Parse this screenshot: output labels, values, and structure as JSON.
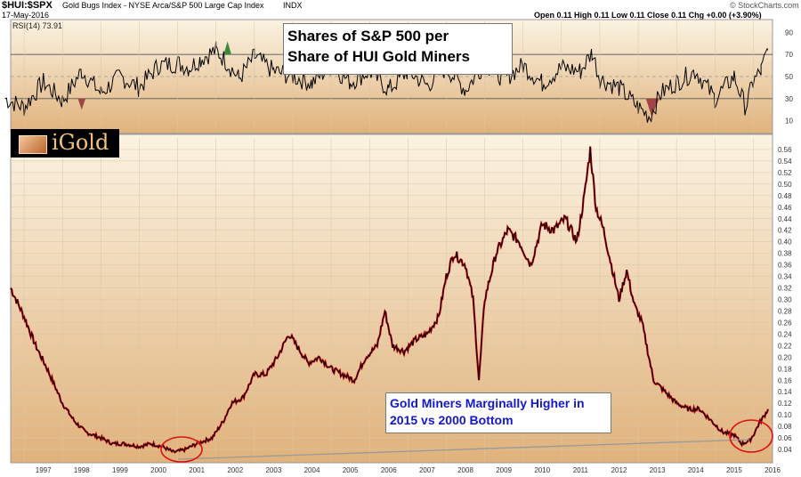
{
  "header": {
    "symbol": "$HUI:$SPX",
    "description": "Gold Bugs Index - NYSE Arca/S&P 500 Large Cap Index",
    "exchange": "INDX",
    "date": "17-May-2016",
    "quote": "Open 0.11  High 0.11  Low 0.11  Close 0.11  Chg +0.00 (+3.90%)",
    "source": "© StockCharts.com"
  },
  "logo_text": "iGold",
  "annotations": {
    "title_line1": "Shares of S&P 500 per",
    "title_line2": "Share of HUI Gold Miners",
    "callout_line1": "Gold Miners Marginally Higher in",
    "callout_line2": "2015 vs 2000 Bottom"
  },
  "colors": {
    "bg_top": "#fbf3e2",
    "bg_bottom": "#e0b27c",
    "price_line": "#000000",
    "price_down": "#cc0000",
    "rsi_overbought": "#3b8a3b",
    "rsi_oversold": "#a04545",
    "circle": "#dd1111",
    "callout_text": "#1418cc"
  },
  "chart_data": [
    {
      "type": "line",
      "title": "RSI(14) 73.91",
      "ylim": [
        0,
        100
      ],
      "ticks": [
        10,
        30,
        50,
        70,
        90
      ],
      "reference_lines": [
        30,
        50,
        70
      ],
      "x": [
        1996.5,
        1997.0,
        1997.5,
        1998.0,
        1998.5,
        1999.0,
        1999.5,
        2000.0,
        2000.5,
        2001.0,
        2001.3,
        2001.6,
        2002.0,
        2002.3,
        2002.6,
        2003.0,
        2003.5,
        2004.0,
        2004.5,
        2005.0,
        2005.5,
        2006.0,
        2006.5,
        2007.0,
        2007.5,
        2008.0,
        2008.5,
        2009.0,
        2009.5,
        2010.0,
        2010.5,
        2011.0,
        2011.5,
        2011.8,
        2012.0,
        2012.5,
        2013.0,
        2013.3,
        2013.6,
        2014.0,
        2014.5,
        2015.0,
        2015.5,
        2015.8,
        2016.0,
        2016.2,
        2016.38
      ],
      "values": [
        30,
        22,
        45,
        28,
        55,
        35,
        50,
        40,
        60,
        62,
        58,
        66,
        74,
        62,
        48,
        68,
        55,
        50,
        44,
        60,
        45,
        55,
        38,
        55,
        42,
        58,
        38,
        62,
        48,
        60,
        44,
        58,
        55,
        72,
        48,
        40,
        22,
        14,
        35,
        45,
        55,
        30,
        50,
        22,
        45,
        55,
        73.9
      ]
    },
    {
      "type": "line",
      "title": "Gold Bugs Index - NYSE Arca/S&P 500 Large Cap Index",
      "ylabel": "$HUI:$SPX",
      "xlim": [
        1996.65,
        2016.5
      ],
      "ylim": [
        0.02,
        0.58
      ],
      "x_ticks": [
        1997,
        1998,
        1999,
        2000,
        2001,
        2002,
        2003,
        2004,
        2005,
        2006,
        2007,
        2008,
        2009,
        2010,
        2011,
        2012,
        2013,
        2014,
        2015,
        2016
      ],
      "y_ticks": [
        0.04,
        0.06,
        0.08,
        0.1,
        0.12,
        0.14,
        0.16,
        0.18,
        0.2,
        0.22,
        0.24,
        0.26,
        0.28,
        0.3,
        0.32,
        0.34,
        0.36,
        0.38,
        0.4,
        0.42,
        0.44,
        0.46,
        0.48,
        0.5,
        0.52,
        0.54,
        0.56
      ],
      "x": [
        1996.65,
        1997.0,
        1997.3,
        1997.6,
        1998.0,
        1998.3,
        1998.6,
        1999.0,
        1999.3,
        1999.6,
        2000.0,
        2000.3,
        2000.6,
        2000.9,
        2001.2,
        2001.5,
        2001.9,
        2002.2,
        2002.4,
        2002.7,
        2003.0,
        2003.3,
        2003.6,
        2003.9,
        2004.1,
        2004.4,
        2004.7,
        2005.0,
        2005.3,
        2005.6,
        2005.9,
        2006.2,
        2006.4,
        2006.6,
        2006.9,
        2007.2,
        2007.5,
        2007.8,
        2008.0,
        2008.2,
        2008.5,
        2008.7,
        2008.85,
        2009.0,
        2009.3,
        2009.6,
        2009.9,
        2010.2,
        2010.5,
        2010.8,
        2011.1,
        2011.4,
        2011.6,
        2011.75,
        2011.9,
        2012.1,
        2012.3,
        2012.5,
        2012.7,
        2012.9,
        2013.1,
        2013.4,
        2013.7,
        2014.0,
        2014.3,
        2014.6,
        2014.9,
        2015.2,
        2015.5,
        2015.7,
        2015.9,
        2016.0,
        2016.15,
        2016.3,
        2016.38
      ],
      "values": [
        0.32,
        0.27,
        0.22,
        0.18,
        0.12,
        0.09,
        0.07,
        0.06,
        0.05,
        0.05,
        0.045,
        0.05,
        0.045,
        0.035,
        0.04,
        0.05,
        0.06,
        0.09,
        0.12,
        0.13,
        0.17,
        0.17,
        0.2,
        0.24,
        0.22,
        0.19,
        0.2,
        0.18,
        0.17,
        0.16,
        0.2,
        0.22,
        0.28,
        0.22,
        0.21,
        0.23,
        0.24,
        0.27,
        0.34,
        0.38,
        0.36,
        0.3,
        0.16,
        0.3,
        0.38,
        0.42,
        0.4,
        0.36,
        0.43,
        0.42,
        0.44,
        0.4,
        0.48,
        0.56,
        0.46,
        0.42,
        0.36,
        0.3,
        0.35,
        0.29,
        0.26,
        0.16,
        0.14,
        0.12,
        0.11,
        0.11,
        0.09,
        0.07,
        0.065,
        0.05,
        0.055,
        0.065,
        0.085,
        0.1,
        0.11
      ]
    }
  ]
}
